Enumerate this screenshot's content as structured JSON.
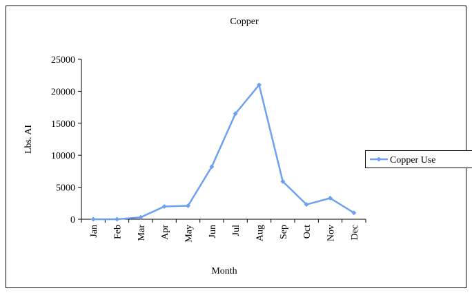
{
  "chart_data": {
    "type": "line",
    "title": "Copper",
    "x_label": "Month",
    "y_label": "Lbs. AI",
    "categories": [
      "Jan",
      "Feb",
      "Mar",
      "Apr",
      "May",
      "Jun",
      "Jul",
      "Aug",
      "Sep",
      "Oct",
      "Nov",
      "Dec"
    ],
    "series": [
      {
        "name": "Copper Use",
        "color": "#6ca0f0",
        "values": [
          0,
          0,
          300,
          2000,
          2100,
          8200,
          16500,
          21000,
          5900,
          2300,
          3300,
          1000
        ]
      }
    ],
    "ylim": [
      0,
      25000
    ],
    "yticks": [
      0,
      5000,
      10000,
      15000,
      20000,
      25000
    ],
    "grid": false,
    "legend": "right"
  }
}
